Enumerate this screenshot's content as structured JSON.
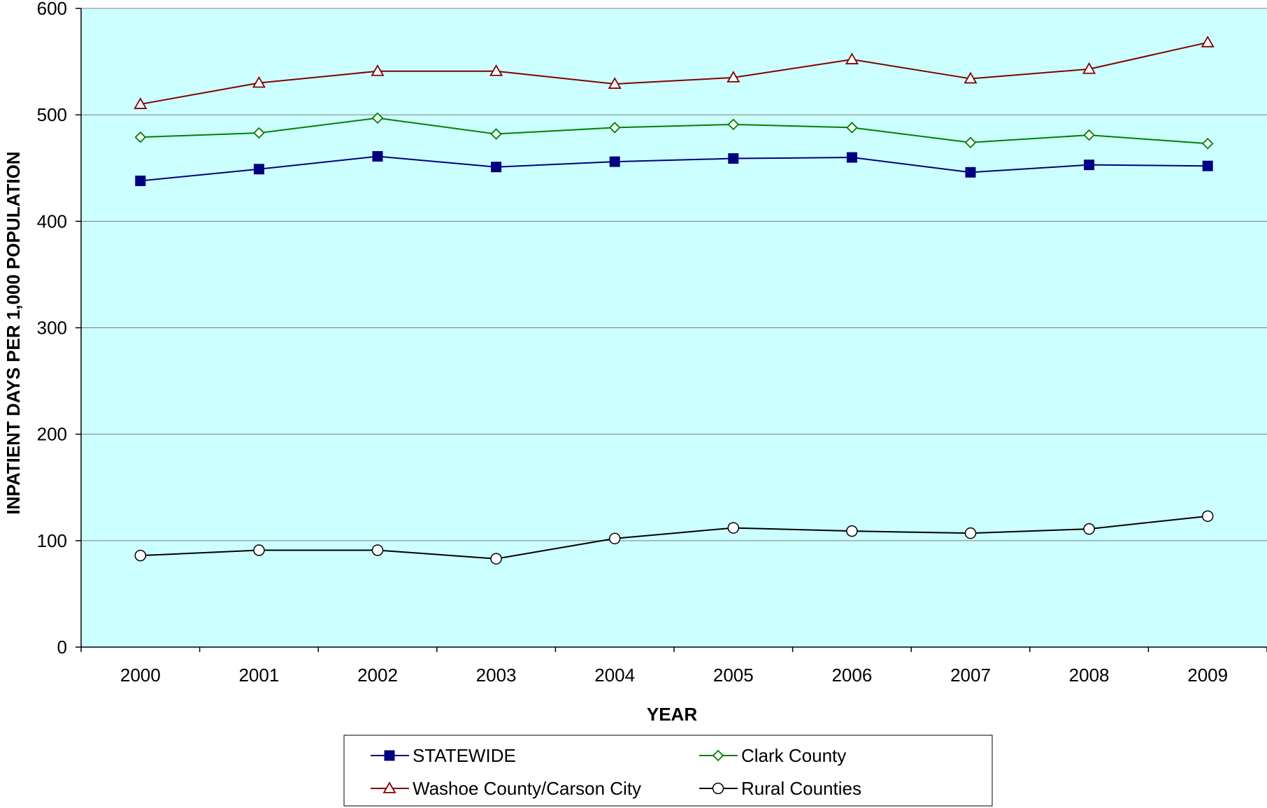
{
  "chart_data": {
    "type": "line",
    "title": "",
    "xlabel": "YEAR",
    "ylabel": "INPATIENT DAYS PER 1,000 POPULATION",
    "categories": [
      "2000",
      "2001",
      "2002",
      "2003",
      "2004",
      "2005",
      "2006",
      "2007",
      "2008",
      "2009"
    ],
    "ylim": [
      0,
      600
    ],
    "yticks": [
      0,
      100,
      200,
      300,
      400,
      500,
      600
    ],
    "grid": true,
    "legend_position": "bottom",
    "plot_background": "#CCFFFF",
    "series": [
      {
        "name": "STATEWIDE",
        "color": "#000080",
        "marker": "filled-square",
        "values": [
          438,
          449,
          461,
          451,
          456,
          459,
          460,
          446,
          453,
          452
        ]
      },
      {
        "name": "Clark County",
        "color": "#008000",
        "marker": "open-diamond",
        "values": [
          479,
          483,
          497,
          482,
          488,
          491,
          488,
          474,
          481,
          473
        ]
      },
      {
        "name": "Washoe County/Carson City",
        "color": "#800000",
        "marker": "open-triangle",
        "values": [
          510,
          530,
          541,
          541,
          529,
          535,
          552,
          534,
          543,
          568
        ]
      },
      {
        "name": "Rural Counties",
        "color": "#000000",
        "marker": "open-circle",
        "values": [
          86,
          91,
          91,
          83,
          102,
          112,
          109,
          107,
          111,
          123
        ]
      }
    ]
  }
}
